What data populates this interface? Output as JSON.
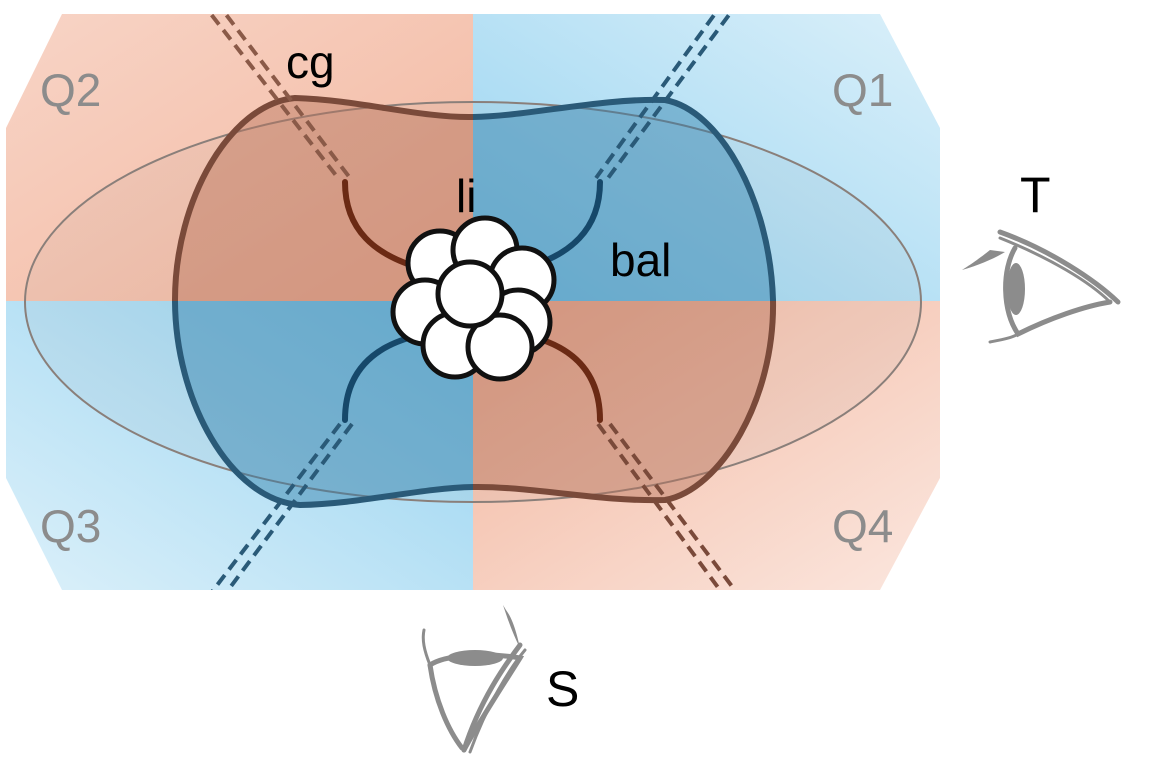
{
  "diagram": {
    "quadrants": [
      "Q1",
      "Q2",
      "Q3",
      "Q4"
    ],
    "structure_labels": {
      "cg": "cg",
      "li": "li",
      "bal": "bal"
    },
    "view_labels": {
      "T": "T",
      "S": "S"
    },
    "colors": {
      "orange_zone": "#f2b39a",
      "blue_zone": "#8fd0ef",
      "brown_structure": "#6b2a14",
      "blue_structure": "#16486a",
      "label_gray": "#8c8c8c",
      "eye_gray": "#8c8c8c"
    }
  }
}
